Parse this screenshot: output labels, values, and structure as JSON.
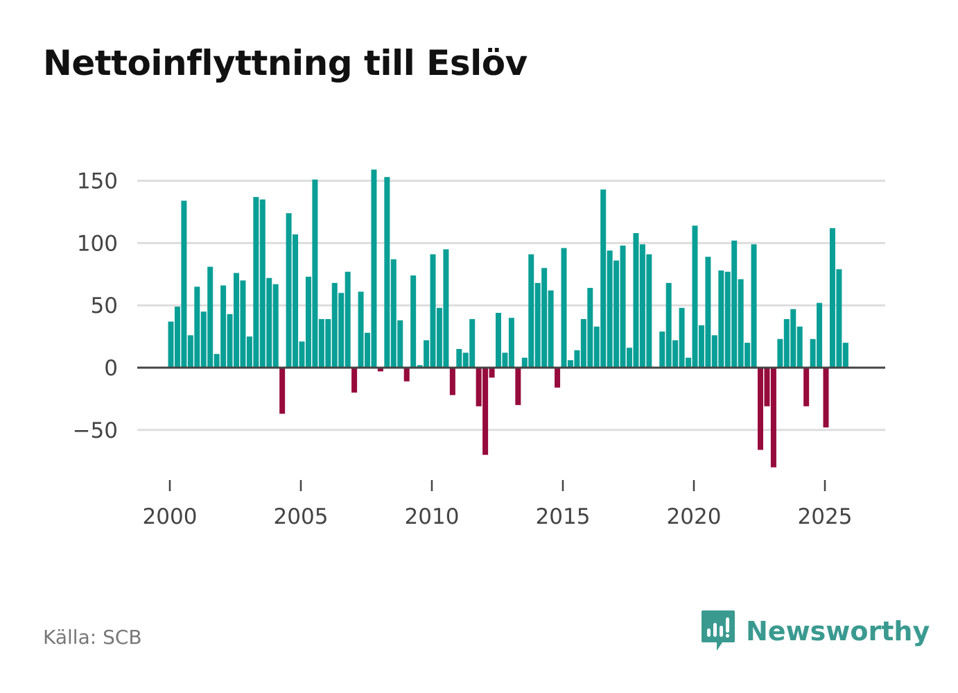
{
  "chart_data": {
    "type": "bar",
    "title": "Nettoinflyttning till Eslöv",
    "xlabel": "",
    "ylabel": "",
    "period": "quarterly",
    "x_start": 2000.0,
    "x_step": 0.25,
    "x_ticks": [
      2000,
      2005,
      2010,
      2015,
      2020,
      2025
    ],
    "y_ticks": [
      150,
      100,
      50,
      0,
      -50
    ],
    "y_tick_labels": [
      "150",
      "100",
      "50",
      "0",
      "−50"
    ],
    "ylim": [
      -85,
      160
    ],
    "xlim": [
      1999,
      2027.5
    ],
    "grid": true,
    "colors": {
      "positive": "#0a9f96",
      "negative": "#960a3c",
      "grid": "#dddddd",
      "zero_line": "#444444"
    },
    "values": [
      37,
      49,
      134,
      26,
      65,
      45,
      81,
      11,
      66,
      43,
      76,
      70,
      25,
      137,
      135,
      72,
      67,
      -37,
      124,
      107,
      21,
      73,
      151,
      39,
      39,
      68,
      60,
      77,
      -20,
      61,
      28,
      159,
      -3,
      153,
      87,
      38,
      -11,
      74,
      2,
      22,
      91,
      48,
      95,
      -22,
      15,
      12,
      39,
      -31,
      -70,
      -8,
      44,
      12,
      40,
      -30,
      8,
      91,
      68,
      80,
      62,
      -16,
      96,
      6,
      14,
      39,
      64,
      33,
      143,
      94,
      86,
      98,
      16,
      108,
      99,
      91,
      0,
      29,
      68,
      22,
      48,
      8,
      114,
      34,
      89,
      26,
      78,
      77,
      102,
      71,
      20,
      99,
      -66,
      -31,
      -80,
      23,
      39,
      47,
      33,
      -31,
      23,
      52,
      -48,
      112,
      79,
      20
    ]
  },
  "source": "Källa: SCB",
  "brand": {
    "name": "Newsworthy",
    "color": "#3a9a90"
  }
}
